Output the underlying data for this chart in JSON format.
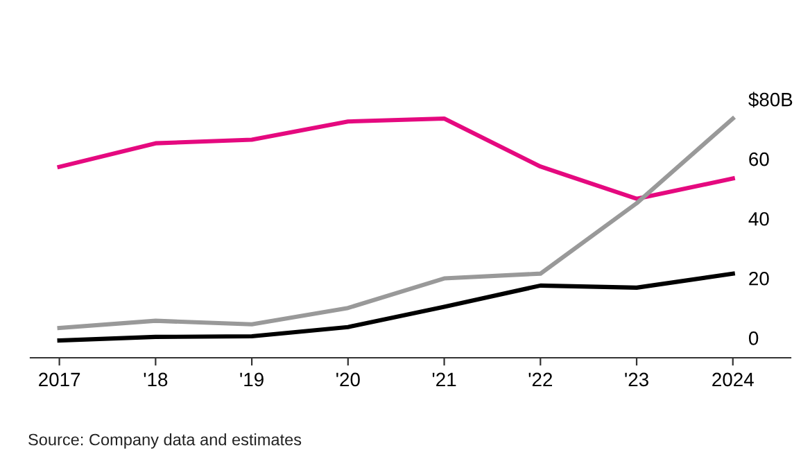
{
  "chart_data": {
    "type": "line",
    "categories": [
      "2017",
      "'18",
      "'19",
      "'20",
      "'21",
      "'22",
      "'23",
      "2024"
    ],
    "series": [
      {
        "color": "#e5097f",
        "values": [
          58.0,
          65.9,
          67.1,
          73.2,
          74.2,
          58.1,
          47.3,
          54.1
        ]
      },
      {
        "color": "#999999",
        "values": [
          4.0,
          6.4,
          5.2,
          10.7,
          20.6,
          22.2,
          45.8,
          74.2
        ]
      },
      {
        "color": "#000000",
        "values": [
          -0.2,
          1.0,
          1.2,
          4.3,
          11.1,
          18.2,
          17.5,
          22.2
        ]
      }
    ],
    "ylim": [
      -6,
      80
    ],
    "yticks": [
      0,
      20,
      40,
      60,
      {
        "value": 80,
        "label": "$80B"
      }
    ],
    "grid": false,
    "legend": false,
    "marker": "none",
    "line_style": "solid",
    "annotations": [
      "Source: Company data and estimates"
    ]
  }
}
